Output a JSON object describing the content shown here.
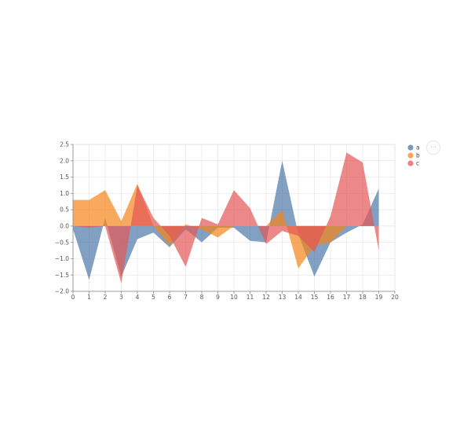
{
  "menu": {
    "icon": "ellipsis-icon",
    "label": "···"
  },
  "chart_data": {
    "type": "area",
    "x": [
      0,
      1,
      2,
      3,
      4,
      5,
      6,
      7,
      8,
      9,
      10,
      11,
      12,
      13,
      14,
      15,
      16,
      17,
      18,
      19
    ],
    "xlim": [
      0,
      20
    ],
    "ylim": [
      -2.0,
      2.5
    ],
    "xticks": [
      "0",
      "1",
      "2",
      "3",
      "4",
      "5",
      "6",
      "7",
      "8",
      "9",
      "10",
      "11",
      "12",
      "13",
      "14",
      "15",
      "16",
      "17",
      "18",
      "19",
      "20"
    ],
    "yticks": [
      "2.5",
      "2.0",
      "1.5",
      "1.0",
      "0.5",
      "0.0",
      "−0.5",
      "−1.0",
      "−1.5",
      "−2.0"
    ],
    "ytick_values": [
      2.5,
      2.0,
      1.5,
      1.0,
      0.5,
      0.0,
      -0.5,
      -1.0,
      -1.5,
      -2.0
    ],
    "grid": true,
    "legend_position": "top-right",
    "series": [
      {
        "name": "a",
        "color": "#4c78a8",
        "values": [
          -0.1,
          -1.65,
          0.25,
          -1.55,
          -0.4,
          -0.2,
          -0.65,
          -0.1,
          -0.5,
          -0.05,
          -0.05,
          -0.45,
          -0.5,
          2.0,
          -0.25,
          -1.55,
          -0.5,
          -0.2,
          0.05,
          1.15
        ]
      },
      {
        "name": "b",
        "color": "#f58518",
        "values": [
          0.8,
          0.8,
          1.1,
          0.15,
          1.3,
          0.0,
          -0.6,
          0.05,
          -0.1,
          -0.35,
          0.0,
          0.0,
          0.0,
          0.5,
          -1.3,
          -0.6,
          -0.5,
          0.0,
          0.0,
          0.0
        ]
      },
      {
        "name": "c",
        "color": "#e45756",
        "values": [
          0.0,
          -0.05,
          0.0,
          -1.75,
          1.25,
          0.25,
          -0.3,
          -1.25,
          0.25,
          0.05,
          1.1,
          0.55,
          -0.55,
          -0.15,
          -0.3,
          -0.8,
          0.3,
          2.25,
          1.95,
          -0.75
        ]
      }
    ]
  }
}
